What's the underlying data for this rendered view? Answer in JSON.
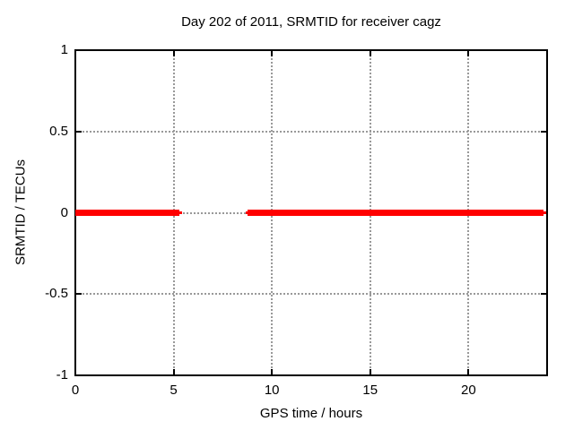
{
  "figure": {
    "title": "Day 202 of 2011, SRMTID for receiver cagz"
  },
  "chart_data": {
    "type": "line",
    "title": "Day 202 of 2011, SRMTID for receiver cagz",
    "xlabel": "GPS time / hours",
    "ylabel": "SRMTID / TECUs",
    "xlim": [
      0,
      24
    ],
    "ylim": [
      -1,
      1
    ],
    "xticks": [
      0,
      5,
      10,
      15,
      20
    ],
    "yticks": [
      -1,
      -0.5,
      0,
      0.5,
      1
    ],
    "grid": true,
    "legend": false,
    "series": [
      {
        "name": "SRMTID",
        "color": "#ff0000",
        "value": 0,
        "segments_hours": [
          [
            0,
            5.3
          ],
          [
            8.75,
            23.8
          ]
        ],
        "thin_end_caps_hours": [
          [
            5.3,
            5.45
          ],
          [
            8.65,
            8.75
          ],
          [
            23.8,
            23.95
          ]
        ],
        "gap_hours": [
          5.3,
          8.75
        ]
      }
    ],
    "colors": {
      "line": "#ff0000",
      "grid": "#999999",
      "border": "#000000",
      "background": "#ffffff",
      "text": "#000000"
    }
  }
}
